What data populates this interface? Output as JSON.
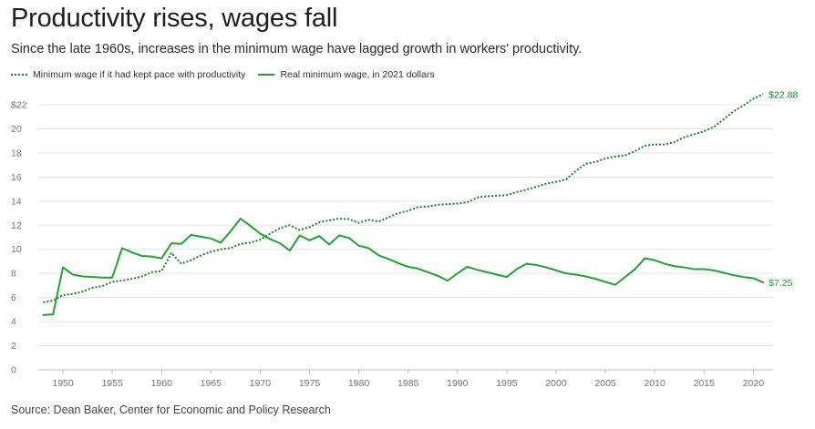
{
  "chart_data": {
    "type": "line",
    "title": "Productivity rises, wages fall",
    "subtitle": "Since the late 1960s, increases in the minimum wage have lagged growth in workers' productivity.",
    "source": "Source: Dean Baker, Center for Economic and Policy Research",
    "xlabel": "",
    "ylabel": "",
    "xlim": [
      1947.5,
      2022
    ],
    "ylim": [
      0,
      22
    ],
    "grid": "horizontal",
    "legend_position": "top-left",
    "y_ticks": [
      0,
      2,
      4,
      6,
      8,
      10,
      12,
      14,
      16,
      18,
      20,
      22
    ],
    "y_tick_labels": [
      "0",
      "2",
      "4",
      "6",
      "8",
      "10",
      "12",
      "14",
      "16",
      "18",
      "20",
      "$22"
    ],
    "x_ticks": [
      1950,
      1955,
      1960,
      1965,
      1970,
      1975,
      1980,
      1985,
      1990,
      1995,
      2000,
      2005,
      2010,
      2015,
      2020
    ],
    "x_tick_labels": [
      "1950",
      "1955",
      "1960",
      "1965",
      "1970",
      "1975",
      "1980",
      "1985",
      "1990",
      "1995",
      "2000",
      "2005",
      "2010",
      "2015",
      "2020"
    ],
    "series": [
      {
        "name": "Minimum wage if it had kept pace with productivity",
        "style": "dotted",
        "color": "#1a7f2e",
        "end_label": "$22.88",
        "x": [
          1948,
          1949,
          1950,
          1951,
          1952,
          1953,
          1954,
          1955,
          1956,
          1957,
          1958,
          1959,
          1960,
          1961,
          1962,
          1963,
          1964,
          1965,
          1966,
          1967,
          1968,
          1969,
          1970,
          1971,
          1972,
          1973,
          1974,
          1975,
          1976,
          1977,
          1978,
          1979,
          1980,
          1981,
          1982,
          1983,
          1984,
          1985,
          1986,
          1987,
          1988,
          1989,
          1990,
          1991,
          1992,
          1993,
          1994,
          1995,
          1996,
          1997,
          1998,
          1999,
          2000,
          2001,
          2002,
          2003,
          2004,
          2005,
          2006,
          2007,
          2008,
          2009,
          2010,
          2011,
          2012,
          2013,
          2014,
          2015,
          2016,
          2017,
          2018,
          2019,
          2020,
          2021
        ],
        "values": [
          5.6,
          5.75,
          6.2,
          6.3,
          6.5,
          6.8,
          6.95,
          7.3,
          7.4,
          7.55,
          7.75,
          8.1,
          8.2,
          9.7,
          8.8,
          9.1,
          9.5,
          9.8,
          10.0,
          10.1,
          10.45,
          10.55,
          10.8,
          11.3,
          11.75,
          12.0,
          11.6,
          11.85,
          12.25,
          12.4,
          12.55,
          12.5,
          12.2,
          12.45,
          12.3,
          12.65,
          13.0,
          13.2,
          13.5,
          13.55,
          13.7,
          13.75,
          13.8,
          13.9,
          14.3,
          14.4,
          14.45,
          14.5,
          14.75,
          14.95,
          15.2,
          15.45,
          15.6,
          15.8,
          16.5,
          17.1,
          17.25,
          17.55,
          17.7,
          17.8,
          18.15,
          18.6,
          18.7,
          18.7,
          18.9,
          19.3,
          19.55,
          19.8,
          20.15,
          20.8,
          21.45,
          21.95,
          22.5,
          22.88
        ]
      },
      {
        "name": "Real minimum wage, in 2021 dollars",
        "style": "solid",
        "color": "#22a135",
        "end_label": "$7.25",
        "x": [
          1948,
          1949,
          1950,
          1951,
          1952,
          1953,
          1954,
          1955,
          1956,
          1957,
          1958,
          1959,
          1960,
          1961,
          1962,
          1963,
          1964,
          1965,
          1966,
          1967,
          1968,
          1969,
          1970,
          1971,
          1972,
          1973,
          1974,
          1975,
          1976,
          1977,
          1978,
          1979,
          1980,
          1981,
          1982,
          1983,
          1984,
          1985,
          1986,
          1987,
          1988,
          1989,
          1990,
          1991,
          1992,
          1993,
          1994,
          1995,
          1996,
          1997,
          1998,
          1999,
          2000,
          2001,
          2002,
          2003,
          2004,
          2005,
          2006,
          2007,
          2008,
          2009,
          2010,
          2011,
          2012,
          2013,
          2014,
          2015,
          2016,
          2017,
          2018,
          2019,
          2020,
          2021
        ],
        "values": [
          4.55,
          4.6,
          8.5,
          7.9,
          7.75,
          7.7,
          7.65,
          7.65,
          10.1,
          9.75,
          9.45,
          9.4,
          9.25,
          10.5,
          10.45,
          11.2,
          11.05,
          10.9,
          10.55,
          11.5,
          12.55,
          11.95,
          11.3,
          10.85,
          10.5,
          9.9,
          11.15,
          10.75,
          11.1,
          10.4,
          11.15,
          10.95,
          10.3,
          10.1,
          9.5,
          9.2,
          8.85,
          8.55,
          8.4,
          8.1,
          7.8,
          7.4,
          8.0,
          8.55,
          8.3,
          8.1,
          7.9,
          7.7,
          8.35,
          8.8,
          8.7,
          8.5,
          8.25,
          8.0,
          7.9,
          7.75,
          7.55,
          7.3,
          7.05,
          7.7,
          8.35,
          9.25,
          9.1,
          8.8,
          8.6,
          8.5,
          8.35,
          8.35,
          8.25,
          8.05,
          7.85,
          7.7,
          7.6,
          7.25
        ]
      }
    ]
  }
}
